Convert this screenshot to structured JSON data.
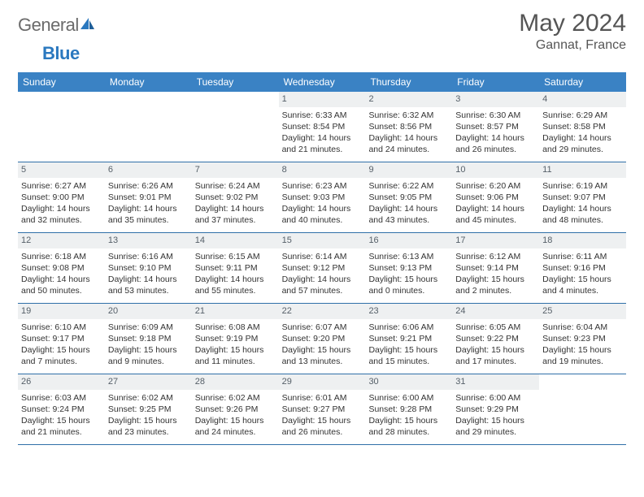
{
  "logo": {
    "text1": "General",
    "text2": "Blue"
  },
  "title": "May 2024",
  "location": "Gannat, France",
  "colors": {
    "header_bg": "#3a82c4",
    "header_text": "#ffffff",
    "daynum_bg": "#eef0f1",
    "daynum_text": "#566069",
    "border": "#2f6fa8",
    "logo_gray": "#6b6b6b",
    "logo_blue": "#2a78bf",
    "title_color": "#555555"
  },
  "day_names": [
    "Sunday",
    "Monday",
    "Tuesday",
    "Wednesday",
    "Thursday",
    "Friday",
    "Saturday"
  ],
  "weeks": [
    [
      {
        "day": "",
        "lines": []
      },
      {
        "day": "",
        "lines": []
      },
      {
        "day": "",
        "lines": []
      },
      {
        "day": "1",
        "lines": [
          "Sunrise: 6:33 AM",
          "Sunset: 8:54 PM",
          "Daylight: 14 hours",
          "and 21 minutes."
        ]
      },
      {
        "day": "2",
        "lines": [
          "Sunrise: 6:32 AM",
          "Sunset: 8:56 PM",
          "Daylight: 14 hours",
          "and 24 minutes."
        ]
      },
      {
        "day": "3",
        "lines": [
          "Sunrise: 6:30 AM",
          "Sunset: 8:57 PM",
          "Daylight: 14 hours",
          "and 26 minutes."
        ]
      },
      {
        "day": "4",
        "lines": [
          "Sunrise: 6:29 AM",
          "Sunset: 8:58 PM",
          "Daylight: 14 hours",
          "and 29 minutes."
        ]
      }
    ],
    [
      {
        "day": "5",
        "lines": [
          "Sunrise: 6:27 AM",
          "Sunset: 9:00 PM",
          "Daylight: 14 hours",
          "and 32 minutes."
        ]
      },
      {
        "day": "6",
        "lines": [
          "Sunrise: 6:26 AM",
          "Sunset: 9:01 PM",
          "Daylight: 14 hours",
          "and 35 minutes."
        ]
      },
      {
        "day": "7",
        "lines": [
          "Sunrise: 6:24 AM",
          "Sunset: 9:02 PM",
          "Daylight: 14 hours",
          "and 37 minutes."
        ]
      },
      {
        "day": "8",
        "lines": [
          "Sunrise: 6:23 AM",
          "Sunset: 9:03 PM",
          "Daylight: 14 hours",
          "and 40 minutes."
        ]
      },
      {
        "day": "9",
        "lines": [
          "Sunrise: 6:22 AM",
          "Sunset: 9:05 PM",
          "Daylight: 14 hours",
          "and 43 minutes."
        ]
      },
      {
        "day": "10",
        "lines": [
          "Sunrise: 6:20 AM",
          "Sunset: 9:06 PM",
          "Daylight: 14 hours",
          "and 45 minutes."
        ]
      },
      {
        "day": "11",
        "lines": [
          "Sunrise: 6:19 AM",
          "Sunset: 9:07 PM",
          "Daylight: 14 hours",
          "and 48 minutes."
        ]
      }
    ],
    [
      {
        "day": "12",
        "lines": [
          "Sunrise: 6:18 AM",
          "Sunset: 9:08 PM",
          "Daylight: 14 hours",
          "and 50 minutes."
        ]
      },
      {
        "day": "13",
        "lines": [
          "Sunrise: 6:16 AM",
          "Sunset: 9:10 PM",
          "Daylight: 14 hours",
          "and 53 minutes."
        ]
      },
      {
        "day": "14",
        "lines": [
          "Sunrise: 6:15 AM",
          "Sunset: 9:11 PM",
          "Daylight: 14 hours",
          "and 55 minutes."
        ]
      },
      {
        "day": "15",
        "lines": [
          "Sunrise: 6:14 AM",
          "Sunset: 9:12 PM",
          "Daylight: 14 hours",
          "and 57 minutes."
        ]
      },
      {
        "day": "16",
        "lines": [
          "Sunrise: 6:13 AM",
          "Sunset: 9:13 PM",
          "Daylight: 15 hours",
          "and 0 minutes."
        ]
      },
      {
        "day": "17",
        "lines": [
          "Sunrise: 6:12 AM",
          "Sunset: 9:14 PM",
          "Daylight: 15 hours",
          "and 2 minutes."
        ]
      },
      {
        "day": "18",
        "lines": [
          "Sunrise: 6:11 AM",
          "Sunset: 9:16 PM",
          "Daylight: 15 hours",
          "and 4 minutes."
        ]
      }
    ],
    [
      {
        "day": "19",
        "lines": [
          "Sunrise: 6:10 AM",
          "Sunset: 9:17 PM",
          "Daylight: 15 hours",
          "and 7 minutes."
        ]
      },
      {
        "day": "20",
        "lines": [
          "Sunrise: 6:09 AM",
          "Sunset: 9:18 PM",
          "Daylight: 15 hours",
          "and 9 minutes."
        ]
      },
      {
        "day": "21",
        "lines": [
          "Sunrise: 6:08 AM",
          "Sunset: 9:19 PM",
          "Daylight: 15 hours",
          "and 11 minutes."
        ]
      },
      {
        "day": "22",
        "lines": [
          "Sunrise: 6:07 AM",
          "Sunset: 9:20 PM",
          "Daylight: 15 hours",
          "and 13 minutes."
        ]
      },
      {
        "day": "23",
        "lines": [
          "Sunrise: 6:06 AM",
          "Sunset: 9:21 PM",
          "Daylight: 15 hours",
          "and 15 minutes."
        ]
      },
      {
        "day": "24",
        "lines": [
          "Sunrise: 6:05 AM",
          "Sunset: 9:22 PM",
          "Daylight: 15 hours",
          "and 17 minutes."
        ]
      },
      {
        "day": "25",
        "lines": [
          "Sunrise: 6:04 AM",
          "Sunset: 9:23 PM",
          "Daylight: 15 hours",
          "and 19 minutes."
        ]
      }
    ],
    [
      {
        "day": "26",
        "lines": [
          "Sunrise: 6:03 AM",
          "Sunset: 9:24 PM",
          "Daylight: 15 hours",
          "and 21 minutes."
        ]
      },
      {
        "day": "27",
        "lines": [
          "Sunrise: 6:02 AM",
          "Sunset: 9:25 PM",
          "Daylight: 15 hours",
          "and 23 minutes."
        ]
      },
      {
        "day": "28",
        "lines": [
          "Sunrise: 6:02 AM",
          "Sunset: 9:26 PM",
          "Daylight: 15 hours",
          "and 24 minutes."
        ]
      },
      {
        "day": "29",
        "lines": [
          "Sunrise: 6:01 AM",
          "Sunset: 9:27 PM",
          "Daylight: 15 hours",
          "and 26 minutes."
        ]
      },
      {
        "day": "30",
        "lines": [
          "Sunrise: 6:00 AM",
          "Sunset: 9:28 PM",
          "Daylight: 15 hours",
          "and 28 minutes."
        ]
      },
      {
        "day": "31",
        "lines": [
          "Sunrise: 6:00 AM",
          "Sunset: 9:29 PM",
          "Daylight: 15 hours",
          "and 29 minutes."
        ]
      },
      {
        "day": "",
        "lines": []
      }
    ]
  ]
}
